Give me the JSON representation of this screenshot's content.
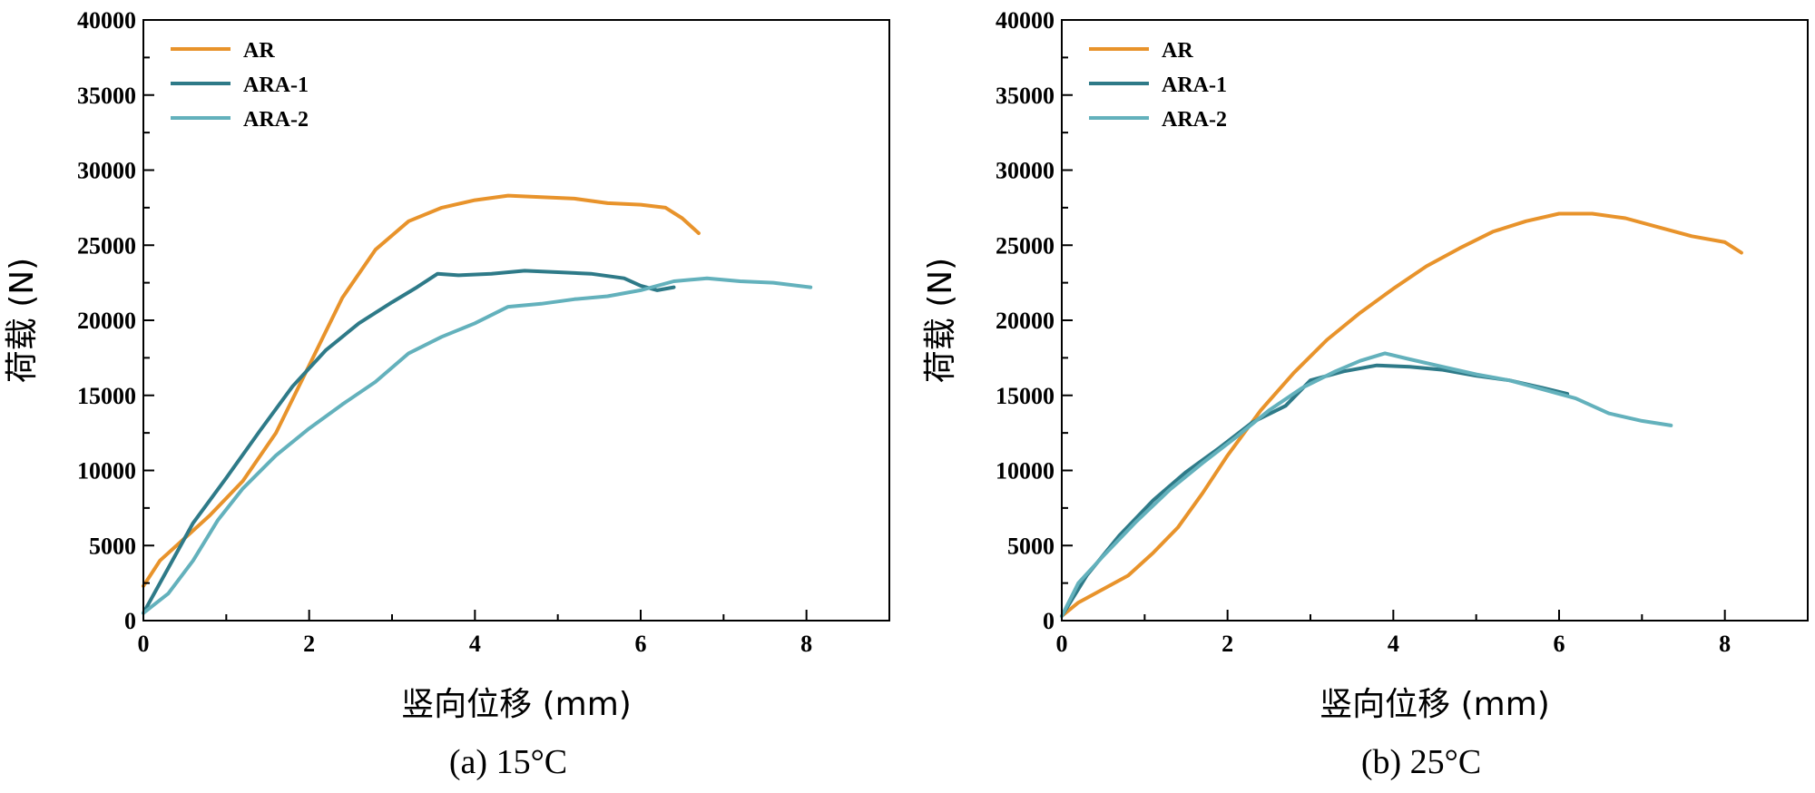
{
  "colors": {
    "AR": "#E8932B",
    "ARA-1": "#2E7A88",
    "ARA-2": "#63B1BC"
  },
  "chart_data": [
    {
      "type": "line",
      "caption": "(a) 15°C",
      "xlabel": "竖向位移 (mm)",
      "ylabel": "荷载 (N)",
      "xlim": [
        0,
        9
      ],
      "ylim": [
        0,
        40000
      ],
      "xticks": [
        0,
        2,
        4,
        6,
        8
      ],
      "yticks": [
        0,
        5000,
        10000,
        15000,
        20000,
        25000,
        30000,
        35000,
        40000
      ],
      "legend_position": "top-left",
      "series": [
        {
          "name": "AR",
          "color": "#E8932B",
          "x": [
            0,
            0.2,
            0.5,
            0.8,
            1.2,
            1.6,
            2.0,
            2.4,
            2.8,
            3.2,
            3.6,
            4.0,
            4.4,
            4.8,
            5.2,
            5.6,
            6.0,
            6.3,
            6.5,
            6.7
          ],
          "y": [
            2300,
            4000,
            5500,
            7000,
            9300,
            12500,
            17000,
            21500,
            24700,
            26600,
            27500,
            28000,
            28300,
            28200,
            28100,
            27800,
            27700,
            27500,
            26800,
            25800
          ]
        },
        {
          "name": "ARA-1",
          "color": "#2E7A88",
          "x": [
            0,
            0.3,
            0.6,
            1.0,
            1.4,
            1.8,
            2.2,
            2.6,
            3.0,
            3.3,
            3.55,
            3.8,
            4.2,
            4.6,
            5.0,
            5.4,
            5.8,
            6.0,
            6.2,
            6.4
          ],
          "y": [
            500,
            3500,
            6500,
            9500,
            12600,
            15600,
            18000,
            19800,
            21200,
            22200,
            23100,
            23000,
            23100,
            23300,
            23200,
            23100,
            22800,
            22300,
            22000,
            22200
          ]
        },
        {
          "name": "ARA-2",
          "color": "#63B1BC",
          "x": [
            0,
            0.3,
            0.6,
            0.9,
            1.2,
            1.6,
            2.0,
            2.4,
            2.8,
            3.2,
            3.6,
            4.0,
            4.4,
            4.8,
            5.2,
            5.6,
            6.0,
            6.4,
            6.8,
            7.2,
            7.6,
            8.05
          ],
          "y": [
            500,
            1800,
            4000,
            6700,
            8800,
            11000,
            12800,
            14400,
            15900,
            17800,
            18900,
            19800,
            20900,
            21100,
            21400,
            21600,
            22000,
            22600,
            22800,
            22600,
            22500,
            22200
          ]
        }
      ]
    },
    {
      "type": "line",
      "caption": "(b) 25°C",
      "xlabel": "竖向位移 (mm)",
      "ylabel": "荷载 (N)",
      "xlim": [
        0,
        9
      ],
      "ylim": [
        0,
        40000
      ],
      "xticks": [
        0,
        2,
        4,
        6,
        8
      ],
      "yticks": [
        0,
        5000,
        10000,
        15000,
        20000,
        25000,
        30000,
        35000,
        40000
      ],
      "legend_position": "top-left",
      "series": [
        {
          "name": "AR",
          "color": "#E8932B",
          "x": [
            0,
            0.2,
            0.5,
            0.8,
            1.1,
            1.4,
            1.7,
            2.0,
            2.4,
            2.8,
            3.2,
            3.6,
            4.0,
            4.4,
            4.8,
            5.2,
            5.6,
            6.0,
            6.4,
            6.8,
            7.2,
            7.6,
            8.0,
            8.2
          ],
          "y": [
            300,
            1200,
            2100,
            3000,
            4500,
            6200,
            8500,
            11000,
            14000,
            16500,
            18700,
            20500,
            22100,
            23600,
            24800,
            25900,
            26600,
            27100,
            27100,
            26800,
            26200,
            25600,
            25200,
            24500
          ]
        },
        {
          "name": "ARA-1",
          "color": "#2E7A88",
          "x": [
            0,
            0.3,
            0.7,
            1.1,
            1.5,
            1.9,
            2.3,
            2.7,
            3.0,
            3.4,
            3.8,
            4.2,
            4.6,
            5.0,
            5.4,
            5.8,
            6.1
          ],
          "y": [
            300,
            3000,
            5700,
            8000,
            9900,
            11500,
            13200,
            14300,
            16000,
            16600,
            17000,
            16900,
            16700,
            16300,
            16000,
            15500,
            15100
          ]
        },
        {
          "name": "ARA-2",
          "color": "#63B1BC",
          "x": [
            0,
            0.2,
            0.5,
            0.9,
            1.3,
            1.7,
            2.1,
            2.5,
            2.9,
            3.3,
            3.6,
            3.9,
            4.2,
            4.6,
            5.0,
            5.4,
            5.8,
            6.2,
            6.6,
            7.0,
            7.35
          ],
          "y": [
            300,
            2500,
            4300,
            6600,
            8700,
            10500,
            12200,
            14000,
            15500,
            16600,
            17300,
            17800,
            17400,
            16900,
            16400,
            16000,
            15400,
            14800,
            13800,
            13300,
            13000
          ]
        }
      ]
    }
  ]
}
